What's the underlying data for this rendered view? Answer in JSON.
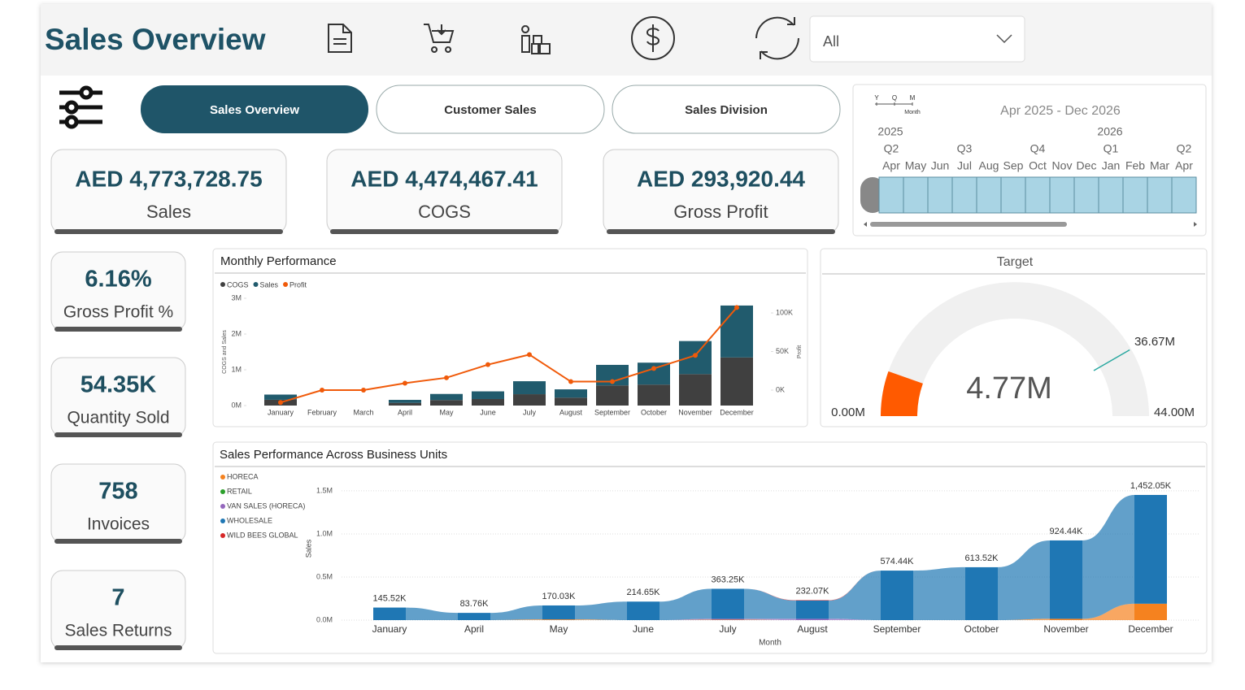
{
  "header": {
    "title": "Sales Overview",
    "filter": "All"
  },
  "nav": [
    "Sales Overview",
    "Customer Sales",
    "Sales Division"
  ],
  "timeline": {
    "range": "Apr 2025 - Dec 2026",
    "granularity": [
      "Y",
      "Q",
      "M"
    ],
    "granularity_label": "Month",
    "years": [
      "2025",
      "2026"
    ],
    "quarters": [
      "Q2",
      "Q3",
      "Q4",
      "Q1",
      "Q2"
    ],
    "months": [
      "Apr",
      "May",
      "Jun",
      "Jul",
      "Aug",
      "Sep",
      "Oct",
      "Nov",
      "Dec",
      "Jan",
      "Feb",
      "Mar",
      "Apr"
    ]
  },
  "kpis": [
    {
      "value": "AED 4,773,728.75",
      "label": "Sales"
    },
    {
      "value": "AED 4,474,467.41",
      "label": "COGS"
    },
    {
      "value": "AED 293,920.44",
      "label": "Gross Profit"
    },
    {
      "value": "6.16%",
      "label": "Gross Profit %"
    },
    {
      "value": "54.35K",
      "label": "Quantity Sold"
    },
    {
      "value": "758",
      "label": "Invoices"
    },
    {
      "value": "7",
      "label": "Sales Returns"
    }
  ],
  "chart_data": [
    {
      "type": "combo",
      "title": "Monthly Performance",
      "categories": [
        "January",
        "February",
        "March",
        "April",
        "May",
        "June",
        "July",
        "August",
        "September",
        "October",
        "November",
        "December"
      ],
      "series": [
        {
          "name": "COGS",
          "color": "#404040",
          "values": [
            161000,
            0,
            0,
            75000,
            154000,
            182000,
            317000,
            221000,
            563000,
            586000,
            879000,
            1345000
          ]
        },
        {
          "name": "Sales",
          "color": "#215b6d",
          "values": [
            145520,
            0,
            0,
            83760,
            170030,
            214650,
            363250,
            232070,
            574440,
            613520,
            924440,
            1452050
          ]
        },
        {
          "name": "Profit",
          "color": "#f05a0a",
          "axis": "y2",
          "values": [
            -16000,
            0,
            0,
            9000,
            16000,
            33000,
            46000,
            11000,
            11000,
            28000,
            45000,
            107000
          ]
        }
      ],
      "y_label": "COGS and Sales",
      "y2_label": "Profit",
      "ylim": [
        0,
        3000000
      ],
      "yticks": [
        {
          "value": 0,
          "label": "0M"
        },
        {
          "value": 1000000,
          "label": "1M"
        },
        {
          "value": 2000000,
          "label": "2M"
        },
        {
          "value": 3000000,
          "label": "3M"
        }
      ],
      "y2lim": [
        -20000,
        119000
      ],
      "y2ticks": [
        {
          "value": 0,
          "label": "0K"
        },
        {
          "value": 50000,
          "label": "50K"
        },
        {
          "value": 100000,
          "label": "100K"
        }
      ]
    },
    {
      "type": "gauge",
      "title": "Target",
      "value": 4770000,
      "value_label": "4.77M",
      "min": 0,
      "min_label": "0.00M",
      "max": 44000000,
      "max_label": "44.00M",
      "target": 36670000,
      "target_label": "36.67M",
      "color": "#ff5a00",
      "track_color": "#f0f0f0",
      "target_color": "#2aa8a0"
    },
    {
      "type": "ribbon",
      "title": "Sales Performance Across Business Units",
      "x_label": "Month",
      "y_label": "Sales",
      "categories": [
        "January",
        "April",
        "May",
        "June",
        "July",
        "August",
        "September",
        "October",
        "November",
        "December"
      ],
      "series": [
        {
          "name": "HORECA",
          "color": "#f5821f",
          "values": [
            0,
            0,
            8000,
            0,
            5000,
            0,
            0,
            0,
            15000,
            190000
          ]
        },
        {
          "name": "RETAIL",
          "color": "#2ca02c",
          "values": [
            0,
            0,
            0,
            0,
            0,
            0,
            0,
            0,
            0,
            0
          ]
        },
        {
          "name": "VAN SALES (HORECA)",
          "color": "#9467bd",
          "values": [
            0,
            0,
            0,
            0,
            10000,
            15000,
            0,
            0,
            0,
            0
          ]
        },
        {
          "name": "WHOLESALE",
          "color": "#1f77b4",
          "values": [
            145520,
            83760,
            162030,
            214650,
            348250,
            212070,
            574440,
            613520,
            909440,
            1262050
          ]
        },
        {
          "name": "WILD BEES GLOBAL",
          "color": "#d62728",
          "values": [
            0,
            0,
            0,
            0,
            0,
            5000,
            0,
            0,
            0,
            0
          ]
        }
      ],
      "totals": {
        "values": [
          145520,
          83760,
          170030,
          214650,
          363250,
          232070,
          574440,
          613520,
          924440,
          1452050
        ],
        "value_labels": [
          "145.52K",
          "83.76K",
          "170.03K",
          "214.65K",
          "363.25K",
          "232.07K",
          "574.44K",
          "613.52K",
          "924.44K",
          "1,452.05K"
        ]
      },
      "ylim": [
        0,
        1650000
      ],
      "yticks": [
        {
          "value": 0,
          "label": "0.0M"
        },
        {
          "value": 500000,
          "label": "0.5M"
        },
        {
          "value": 1000000,
          "label": "1.0M"
        },
        {
          "value": 1500000,
          "label": "1.5M"
        }
      ]
    }
  ]
}
